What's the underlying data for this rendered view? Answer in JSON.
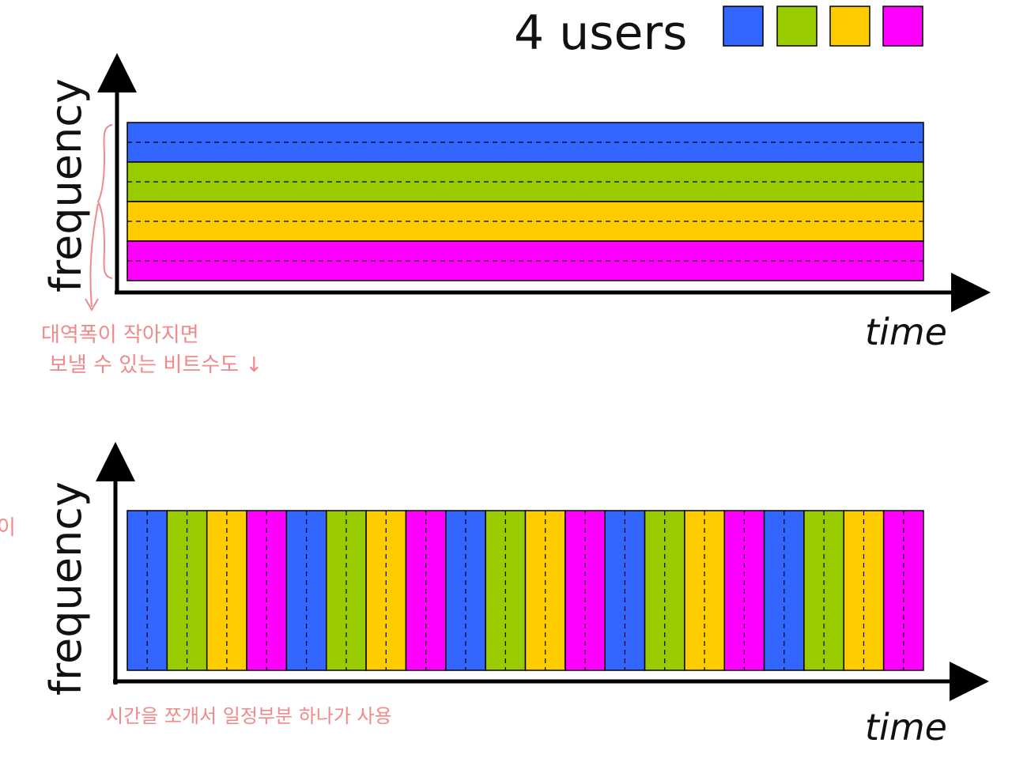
{
  "legend": {
    "title": "4 users",
    "colors": [
      "#3366ff",
      "#99cc00",
      "#ffcc00",
      "#ff00ff"
    ]
  },
  "fdm": {
    "ylabel": "frequency",
    "xlabel": "time",
    "annotation_line1": "대역폭이 작아지면",
    "annotation_line2": "보낼 수 있는 비트수도 ↓"
  },
  "tdm": {
    "ylabel": "frequency",
    "xlabel": "time",
    "slot_count": 20,
    "annotation": "시간을 쪼개서 일정부분 하나가 사용"
  },
  "margin_notes": {
    "top_left": "",
    "middle_left": "이"
  }
}
